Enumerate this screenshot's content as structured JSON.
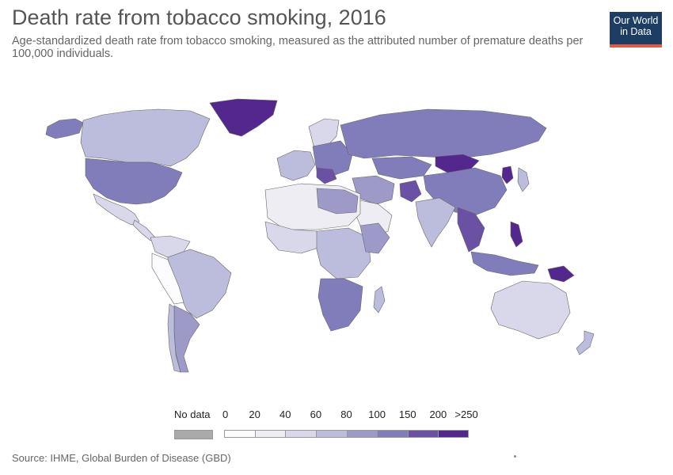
{
  "header": {
    "title": "Death rate from tobacco smoking, 2016",
    "subtitle": "Age-standardized death rate from tobacco smoking, measured as the attributed number of premature deaths per 100,000 individuals.",
    "logo_line1": "Our World",
    "logo_line2": "in Data"
  },
  "legend": {
    "no_data_label": "No data",
    "no_data_color": "#aaaaaa",
    "tick_labels": [
      "0",
      "20",
      "40",
      "60",
      "80",
      "100",
      "150",
      "200",
      ">250"
    ],
    "bins": [
      {
        "color": "#fcfbfd"
      },
      {
        "color": "#eeedf4"
      },
      {
        "color": "#d9d8ea"
      },
      {
        "color": "#bcbddc"
      },
      {
        "color": "#9e9ac8"
      },
      {
        "color": "#807dba"
      },
      {
        "color": "#6a51a3"
      },
      {
        "color": "#54278f"
      }
    ]
  },
  "footer": {
    "source": "Source: IHME, Global Burden of Disease (GBD)"
  }
}
